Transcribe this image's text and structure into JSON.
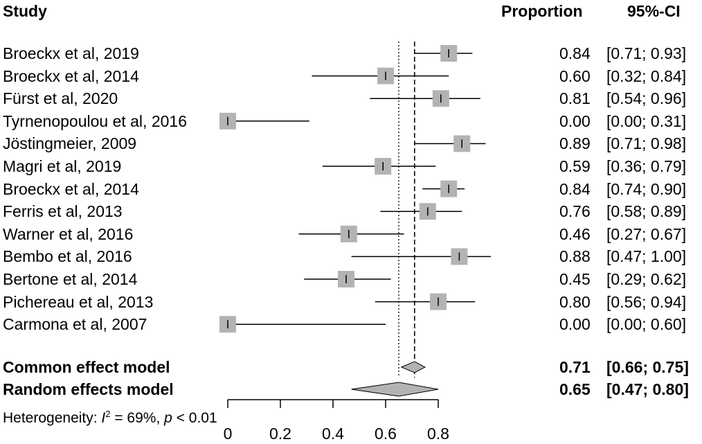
{
  "chart_data": {
    "type": "forest",
    "headers": {
      "study": "Study",
      "proportion": "Proportion",
      "ci": "95%-CI"
    },
    "studies": [
      {
        "label": "Broeckx et al, 2019",
        "est": 0.84,
        "lo": 0.71,
        "hi": 0.93,
        "prop": "0.84",
        "ci": "[0.71; 0.93]"
      },
      {
        "label": "Broeckx et al, 2014",
        "est": 0.6,
        "lo": 0.32,
        "hi": 0.84,
        "prop": "0.60",
        "ci": "[0.32; 0.84]"
      },
      {
        "label": "Fürst et al, 2020",
        "est": 0.81,
        "lo": 0.54,
        "hi": 0.96,
        "prop": "0.81",
        "ci": "[0.54; 0.96]"
      },
      {
        "label": "Tyrnenopoulou et al, 2016",
        "est": 0.0,
        "lo": 0.0,
        "hi": 0.31,
        "prop": "0.00",
        "ci": "[0.00; 0.31]"
      },
      {
        "label": "Jöstingmeier, 2009",
        "est": 0.89,
        "lo": 0.71,
        "hi": 0.98,
        "prop": "0.89",
        "ci": "[0.71; 0.98]"
      },
      {
        "label": "Magri et al, 2019",
        "est": 0.59,
        "lo": 0.36,
        "hi": 0.79,
        "prop": "0.59",
        "ci": "[0.36; 0.79]"
      },
      {
        "label": "Broeckx et al, 2014",
        "est": 0.84,
        "lo": 0.74,
        "hi": 0.9,
        "prop": "0.84",
        "ci": "[0.74; 0.90]"
      },
      {
        "label": "Ferris et al, 2013",
        "est": 0.76,
        "lo": 0.58,
        "hi": 0.89,
        "prop": "0.76",
        "ci": "[0.58; 0.89]"
      },
      {
        "label": "Warner et al, 2016",
        "est": 0.46,
        "lo": 0.27,
        "hi": 0.67,
        "prop": "0.46",
        "ci": "[0.27; 0.67]"
      },
      {
        "label": "Bembo et al, 2016",
        "est": 0.88,
        "lo": 0.47,
        "hi": 1.0,
        "prop": "0.88",
        "ci": "[0.47; 1.00]"
      },
      {
        "label": "Bertone et al, 2014",
        "est": 0.45,
        "lo": 0.29,
        "hi": 0.62,
        "prop": "0.45",
        "ci": "[0.29; 0.62]"
      },
      {
        "label": "Pichereau et al, 2013",
        "est": 0.8,
        "lo": 0.56,
        "hi": 0.94,
        "prop": "0.80",
        "ci": "[0.56; 0.94]"
      },
      {
        "label": "Carmona et al, 2007",
        "est": 0.0,
        "lo": 0.0,
        "hi": 0.6,
        "prop": "0.00",
        "ci": "[0.00; 0.60]"
      }
    ],
    "summary": [
      {
        "label": "Common effect model",
        "est": 0.71,
        "lo": 0.66,
        "hi": 0.75,
        "prop": "0.71",
        "ci": "[0.66; 0.75]"
      },
      {
        "label": "Random effects model",
        "est": 0.65,
        "lo": 0.47,
        "hi": 0.8,
        "prop": "0.65",
        "ci": "[0.47; 0.80]"
      }
    ],
    "heterogeneity": {
      "prefix": "Heterogeneity: ",
      "i_symbol": "I",
      "sup": "2",
      "i_value": " = 69%, ",
      "p_symbol": "p",
      "p_value": " < 0.01"
    },
    "xaxis": {
      "ticks": [
        0,
        0.2,
        0.4,
        0.6,
        0.8
      ],
      "tick_labels": [
        "0",
        "0.2",
        "0.4",
        "0.6",
        "0.8"
      ],
      "range": [
        0,
        0.8
      ]
    },
    "reference_lines": {
      "common_effect": 0.71,
      "random_effects": 0.65
    }
  }
}
